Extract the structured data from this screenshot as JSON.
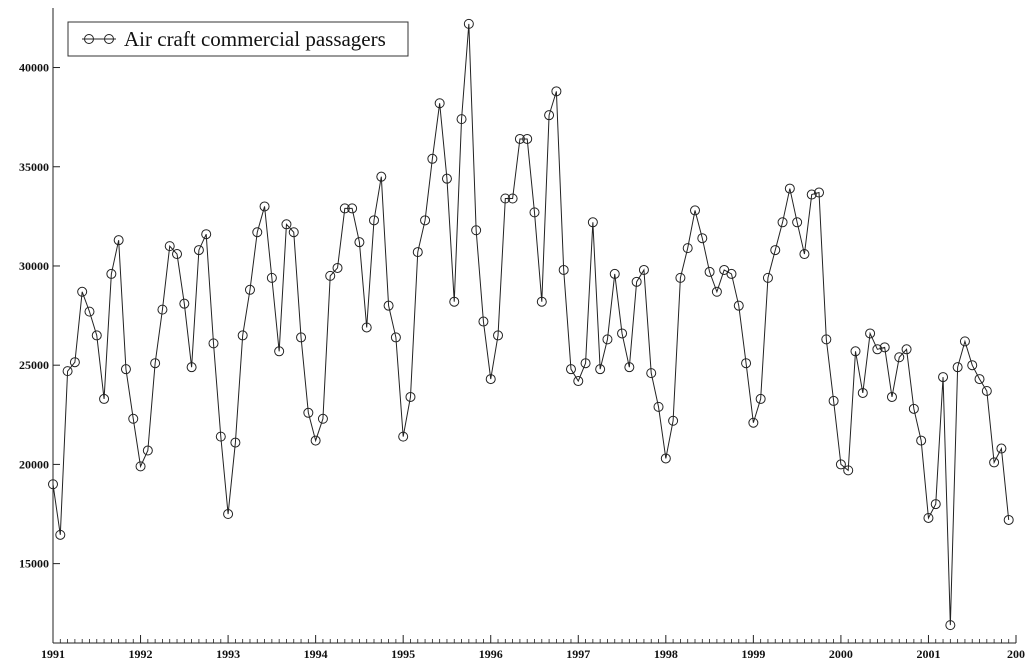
{
  "chart_data": {
    "type": "line",
    "title": "",
    "xlabel": "",
    "ylabel": "",
    "xlim": [
      1991,
      2002
    ],
    "ylim": [
      11000,
      43000
    ],
    "x_ticks": [
      "1991",
      "1992",
      "1993",
      "1994",
      "1995",
      "1996",
      "1997",
      "1998",
      "1999",
      "2000",
      "2001",
      "200"
    ],
    "y_ticks": [
      "15000",
      "20000",
      "25000",
      "30000",
      "35000",
      "40000"
    ],
    "minor_x_ticks_per_year": 12,
    "grid": false,
    "legend_position": "top-left",
    "line_color": "#222222",
    "marker": "open-circle",
    "series": [
      {
        "name": "Air craft commercial passagers",
        "start_year": 1991,
        "points_per_year": 12,
        "values": [
          19000,
          16450,
          24700,
          25150,
          28700,
          27700,
          26500,
          23300,
          29600,
          31300,
          24800,
          22300,
          19900,
          20700,
          25100,
          27800,
          31000,
          30600,
          28100,
          24900,
          30800,
          31600,
          26100,
          21400,
          17500,
          21100,
          26500,
          28800,
          31700,
          33000,
          29400,
          25700,
          32100,
          31700,
          26400,
          22600,
          21200,
          22300,
          29500,
          29900,
          32900,
          32900,
          31200,
          26900,
          32300,
          34500,
          28000,
          26400,
          21400,
          23400,
          30700,
          32300,
          35400,
          38200,
          34400,
          28200,
          37400,
          42200,
          31800,
          27200,
          24300,
          26500,
          33400,
          33400,
          36400,
          36400,
          32700,
          28200,
          37600,
          38800,
          29800,
          24800,
          24200,
          25100,
          32200,
          24800,
          26300,
          29600,
          26600,
          24900,
          29200,
          29800,
          24600,
          22900,
          20300,
          22200,
          29400,
          30900,
          32800,
          31400,
          29700,
          28700,
          29800,
          29600,
          28000,
          25100,
          22100,
          23300,
          29400,
          30800,
          32200,
          33900,
          32200,
          30600,
          33600,
          33700,
          26300,
          23200,
          20000,
          19700,
          25700,
          23600,
          26600,
          25800,
          25900,
          23400,
          25400,
          25800,
          22800,
          21200,
          17300,
          18000,
          24400,
          11900,
          24900,
          26200,
          25000,
          24300,
          23700,
          20100,
          20800,
          17200
        ]
      }
    ]
  }
}
